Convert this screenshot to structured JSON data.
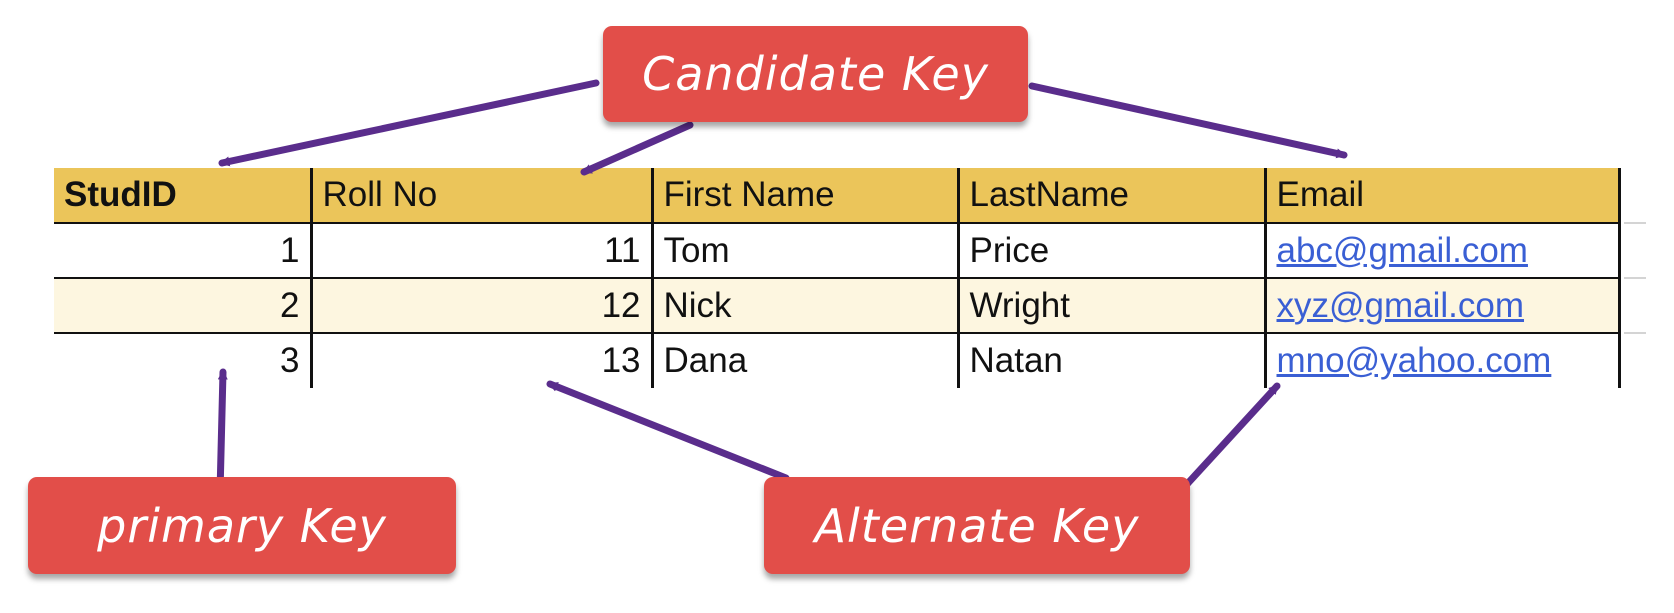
{
  "table": {
    "headers": [
      "StudID",
      "Roll No",
      "First Name",
      "LastName",
      "Email"
    ],
    "rows": [
      [
        "1",
        "11",
        "Tom",
        "Price",
        "abc@gmail.com"
      ],
      [
        "2",
        "12",
        "Nick",
        "Wright",
        "xyz@gmail.com"
      ],
      [
        "3",
        "13",
        "Dana",
        "Natan",
        "mno@yahoo.com"
      ]
    ]
  },
  "labels": {
    "candidate_key": "Candidate Key",
    "primary_key": "primary Key",
    "alternate_key": "Alternate Key"
  },
  "colors": {
    "header_bg": "#ebc55a",
    "alt_row_bg": "#fdf6e0",
    "callout_bg": "#e24e49",
    "arrow": "#5a2d8c",
    "link": "#3a5fd4"
  }
}
